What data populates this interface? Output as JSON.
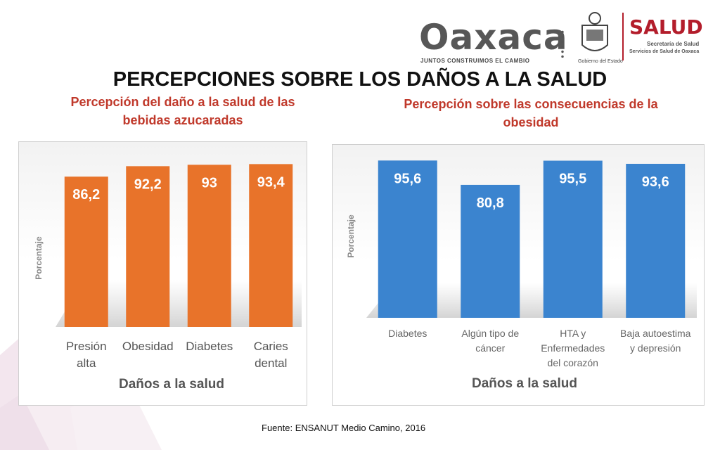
{
  "header": {
    "brand": "Oaxaca",
    "brand_tagline": "JUNTOS CONSTRUIMOS EL CAMBIO",
    "government_label": "Gobierno del Estado",
    "agency": "SALUD",
    "agency_sub1": "Secretaría de Salud",
    "agency_sub2": "Servicios de Salud de Oaxaca"
  },
  "title": "PERCEPCIONES SOBRE LOS DAÑOS A LA SALUD",
  "left_subtitle_line1": "Percepción del daño a la salud de las",
  "left_subtitle_line2": "bebidas azucaradas",
  "right_subtitle_line1": "Percepción sobre las consecuencias de la",
  "right_subtitle_line2": "obesidad",
  "source": "Fuente: ENSANUT Medio Camino,  2016",
  "colors": {
    "orange": "#e8732a",
    "blue": "#3b84cf",
    "title_red": "#c0392b"
  },
  "chart_data": [
    {
      "type": "bar",
      "categories": [
        [
          "Presión",
          "alta"
        ],
        [
          "Obesidad"
        ],
        [
          "Diabetes"
        ],
        [
          "Caries",
          "dental"
        ]
      ],
      "values": [
        86.2,
        92.2,
        93,
        93.4
      ],
      "value_labels": [
        "86,2",
        "92,2",
        "93",
        "93,4"
      ],
      "xlabel": "Daños a la salud",
      "ylabel": "Porcentaje",
      "ylim": [
        0,
        100
      ],
      "color": "#e8732a"
    },
    {
      "type": "bar",
      "categories": [
        [
          "Diabetes"
        ],
        [
          "Algún tipo de",
          "cáncer"
        ],
        [
          "HTA y",
          "Enfermedades",
          "del corazón"
        ],
        [
          "Baja autoestima",
          "y depresión"
        ]
      ],
      "values": [
        95.6,
        80.8,
        95.5,
        93.6
      ],
      "value_labels": [
        "95,6",
        "80,8",
        "95,5",
        "93,6"
      ],
      "xlabel": "Daños a la salud",
      "ylabel": "Porcentaje",
      "ylim": [
        0,
        100
      ],
      "color": "#3b84cf"
    }
  ]
}
